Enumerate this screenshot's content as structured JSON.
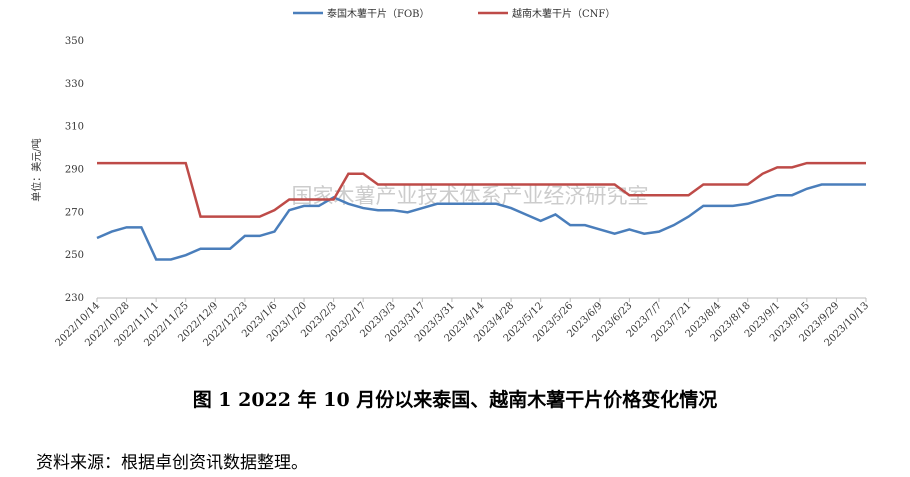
{
  "chart_data": {
    "type": "line",
    "watermark": "国家木薯产业技术体系产业经济研究室",
    "y_label": "单位：美元/吨",
    "categories": [
      "2022/10/14",
      null,
      "2022/10/28",
      null,
      "2022/11/11",
      null,
      "2022/11/25",
      null,
      "2022/12/9",
      null,
      "2022/12/23",
      null,
      "2023/1/6",
      null,
      "2023/1/20",
      null,
      "2023/2/3",
      null,
      "2023/2/17",
      null,
      "2023/3/3",
      null,
      "2023/3/17",
      null,
      "2023/3/31",
      null,
      "2023/4/14",
      null,
      "2023/4/28",
      null,
      "2023/5/12",
      null,
      "2023/5/26",
      null,
      "2023/6/9",
      null,
      "2023/6/23",
      null,
      "2023/7/7",
      null,
      "2023/7/21",
      null,
      "2023/8/4",
      null,
      "2023/8/18",
      null,
      "2023/9/1",
      null,
      "2023/9/15",
      null,
      "2023/9/29",
      null,
      "2023/10/13"
    ],
    "series": [
      {
        "name": "泰国木薯干片（FOB）",
        "color": "#4a7ebb",
        "values": [
          258,
          261,
          263,
          263,
          248,
          248,
          250,
          253,
          253,
          253,
          259,
          259,
          261,
          271,
          273,
          273,
          277,
          274,
          272,
          271,
          271,
          270,
          272,
          274,
          274,
          274,
          274,
          274,
          272,
          269,
          266,
          269,
          264,
          264,
          262,
          260,
          262,
          260,
          261,
          264,
          268,
          273,
          273,
          273,
          274,
          276,
          278,
          278,
          281,
          283,
          283,
          283,
          283
        ]
      },
      {
        "name": "越南木薯干片（CNF）",
        "color": "#be4b48",
        "values": [
          293,
          293,
          293,
          293,
          293,
          293,
          293,
          268,
          268,
          268,
          268,
          268,
          271,
          276,
          276,
          276,
          276,
          288,
          288,
          283,
          283,
          283,
          283,
          283,
          283,
          283,
          283,
          283,
          283,
          283,
          283,
          283,
          283,
          283,
          283,
          283,
          278,
          278,
          278,
          278,
          278,
          283,
          283,
          283,
          283,
          288,
          291,
          291,
          293,
          293,
          293,
          293,
          293
        ]
      }
    ],
    "ylim": [
      230,
      350
    ],
    "yticks": [
      230,
      250,
      270,
      290,
      310,
      330,
      350
    ],
    "caption": "图 1  2022 年 10 月份以来泰国、越南木薯干片价格变化情况",
    "source": "资料来源：根据卓创资讯数据整理。"
  }
}
